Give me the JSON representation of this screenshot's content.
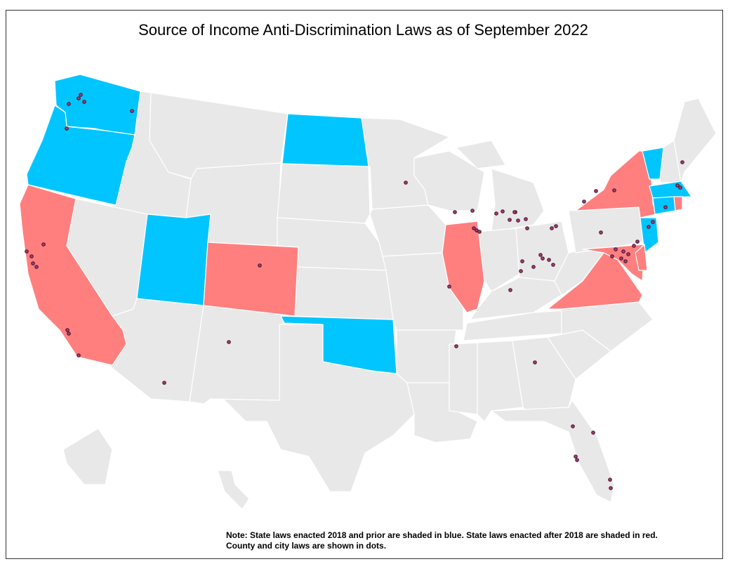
{
  "title": "Source of Income Anti-Discrimination Laws as of September 2022",
  "note": {
    "line1": "Note: State laws enacted 2018 and prior are shaded in blue.  State laws enacted after 2018 are shaded in red.",
    "line2": "County and city laws are shown in dots."
  },
  "colors": {
    "blue": "#00C5FF",
    "red": "#FF7F7F",
    "none": "#E8E8E8",
    "border": "#ffffff",
    "dot": "#3b1230"
  },
  "states": [
    {
      "name": "WA",
      "category": "blue"
    },
    {
      "name": "OR",
      "category": "blue"
    },
    {
      "name": "CA",
      "category": "red"
    },
    {
      "name": "UT",
      "category": "blue"
    },
    {
      "name": "CO",
      "category": "red"
    },
    {
      "name": "ND",
      "category": "blue"
    },
    {
      "name": "OK",
      "category": "blue"
    },
    {
      "name": "IL",
      "category": "red"
    },
    {
      "name": "NY",
      "category": "red"
    },
    {
      "name": "VT",
      "category": "blue"
    },
    {
      "name": "MA",
      "category": "blue"
    },
    {
      "name": "CT",
      "category": "blue"
    },
    {
      "name": "RI",
      "category": "red"
    },
    {
      "name": "NJ",
      "category": "blue"
    },
    {
      "name": "MD",
      "category": "red"
    },
    {
      "name": "DE",
      "category": "red"
    },
    {
      "name": "VA",
      "category": "red"
    },
    {
      "name": "ID",
      "category": "none"
    },
    {
      "name": "MT",
      "category": "none"
    },
    {
      "name": "NV",
      "category": "none"
    },
    {
      "name": "AZ",
      "category": "none"
    },
    {
      "name": "NM",
      "category": "none"
    },
    {
      "name": "WY",
      "category": "none"
    },
    {
      "name": "SD",
      "category": "none"
    },
    {
      "name": "NE",
      "category": "none"
    },
    {
      "name": "KS",
      "category": "none"
    },
    {
      "name": "TX",
      "category": "none"
    },
    {
      "name": "MN",
      "category": "none"
    },
    {
      "name": "IA",
      "category": "none"
    },
    {
      "name": "MO",
      "category": "none"
    },
    {
      "name": "AR",
      "category": "none"
    },
    {
      "name": "LA",
      "category": "none"
    },
    {
      "name": "WI",
      "category": "none"
    },
    {
      "name": "MI",
      "category": "none"
    },
    {
      "name": "IN",
      "category": "none"
    },
    {
      "name": "OH",
      "category": "none"
    },
    {
      "name": "KY",
      "category": "none"
    },
    {
      "name": "TN",
      "category": "none"
    },
    {
      "name": "MS",
      "category": "none"
    },
    {
      "name": "AL",
      "category": "none"
    },
    {
      "name": "GA",
      "category": "none"
    },
    {
      "name": "FL",
      "category": "none"
    },
    {
      "name": "SC",
      "category": "none"
    },
    {
      "name": "NC",
      "category": "none"
    },
    {
      "name": "WV",
      "category": "none"
    },
    {
      "name": "PA",
      "category": "none"
    },
    {
      "name": "NH",
      "category": "none"
    },
    {
      "name": "ME",
      "category": "none"
    },
    {
      "name": "AK",
      "category": "none"
    },
    {
      "name": "HI",
      "category": "none"
    }
  ]
}
